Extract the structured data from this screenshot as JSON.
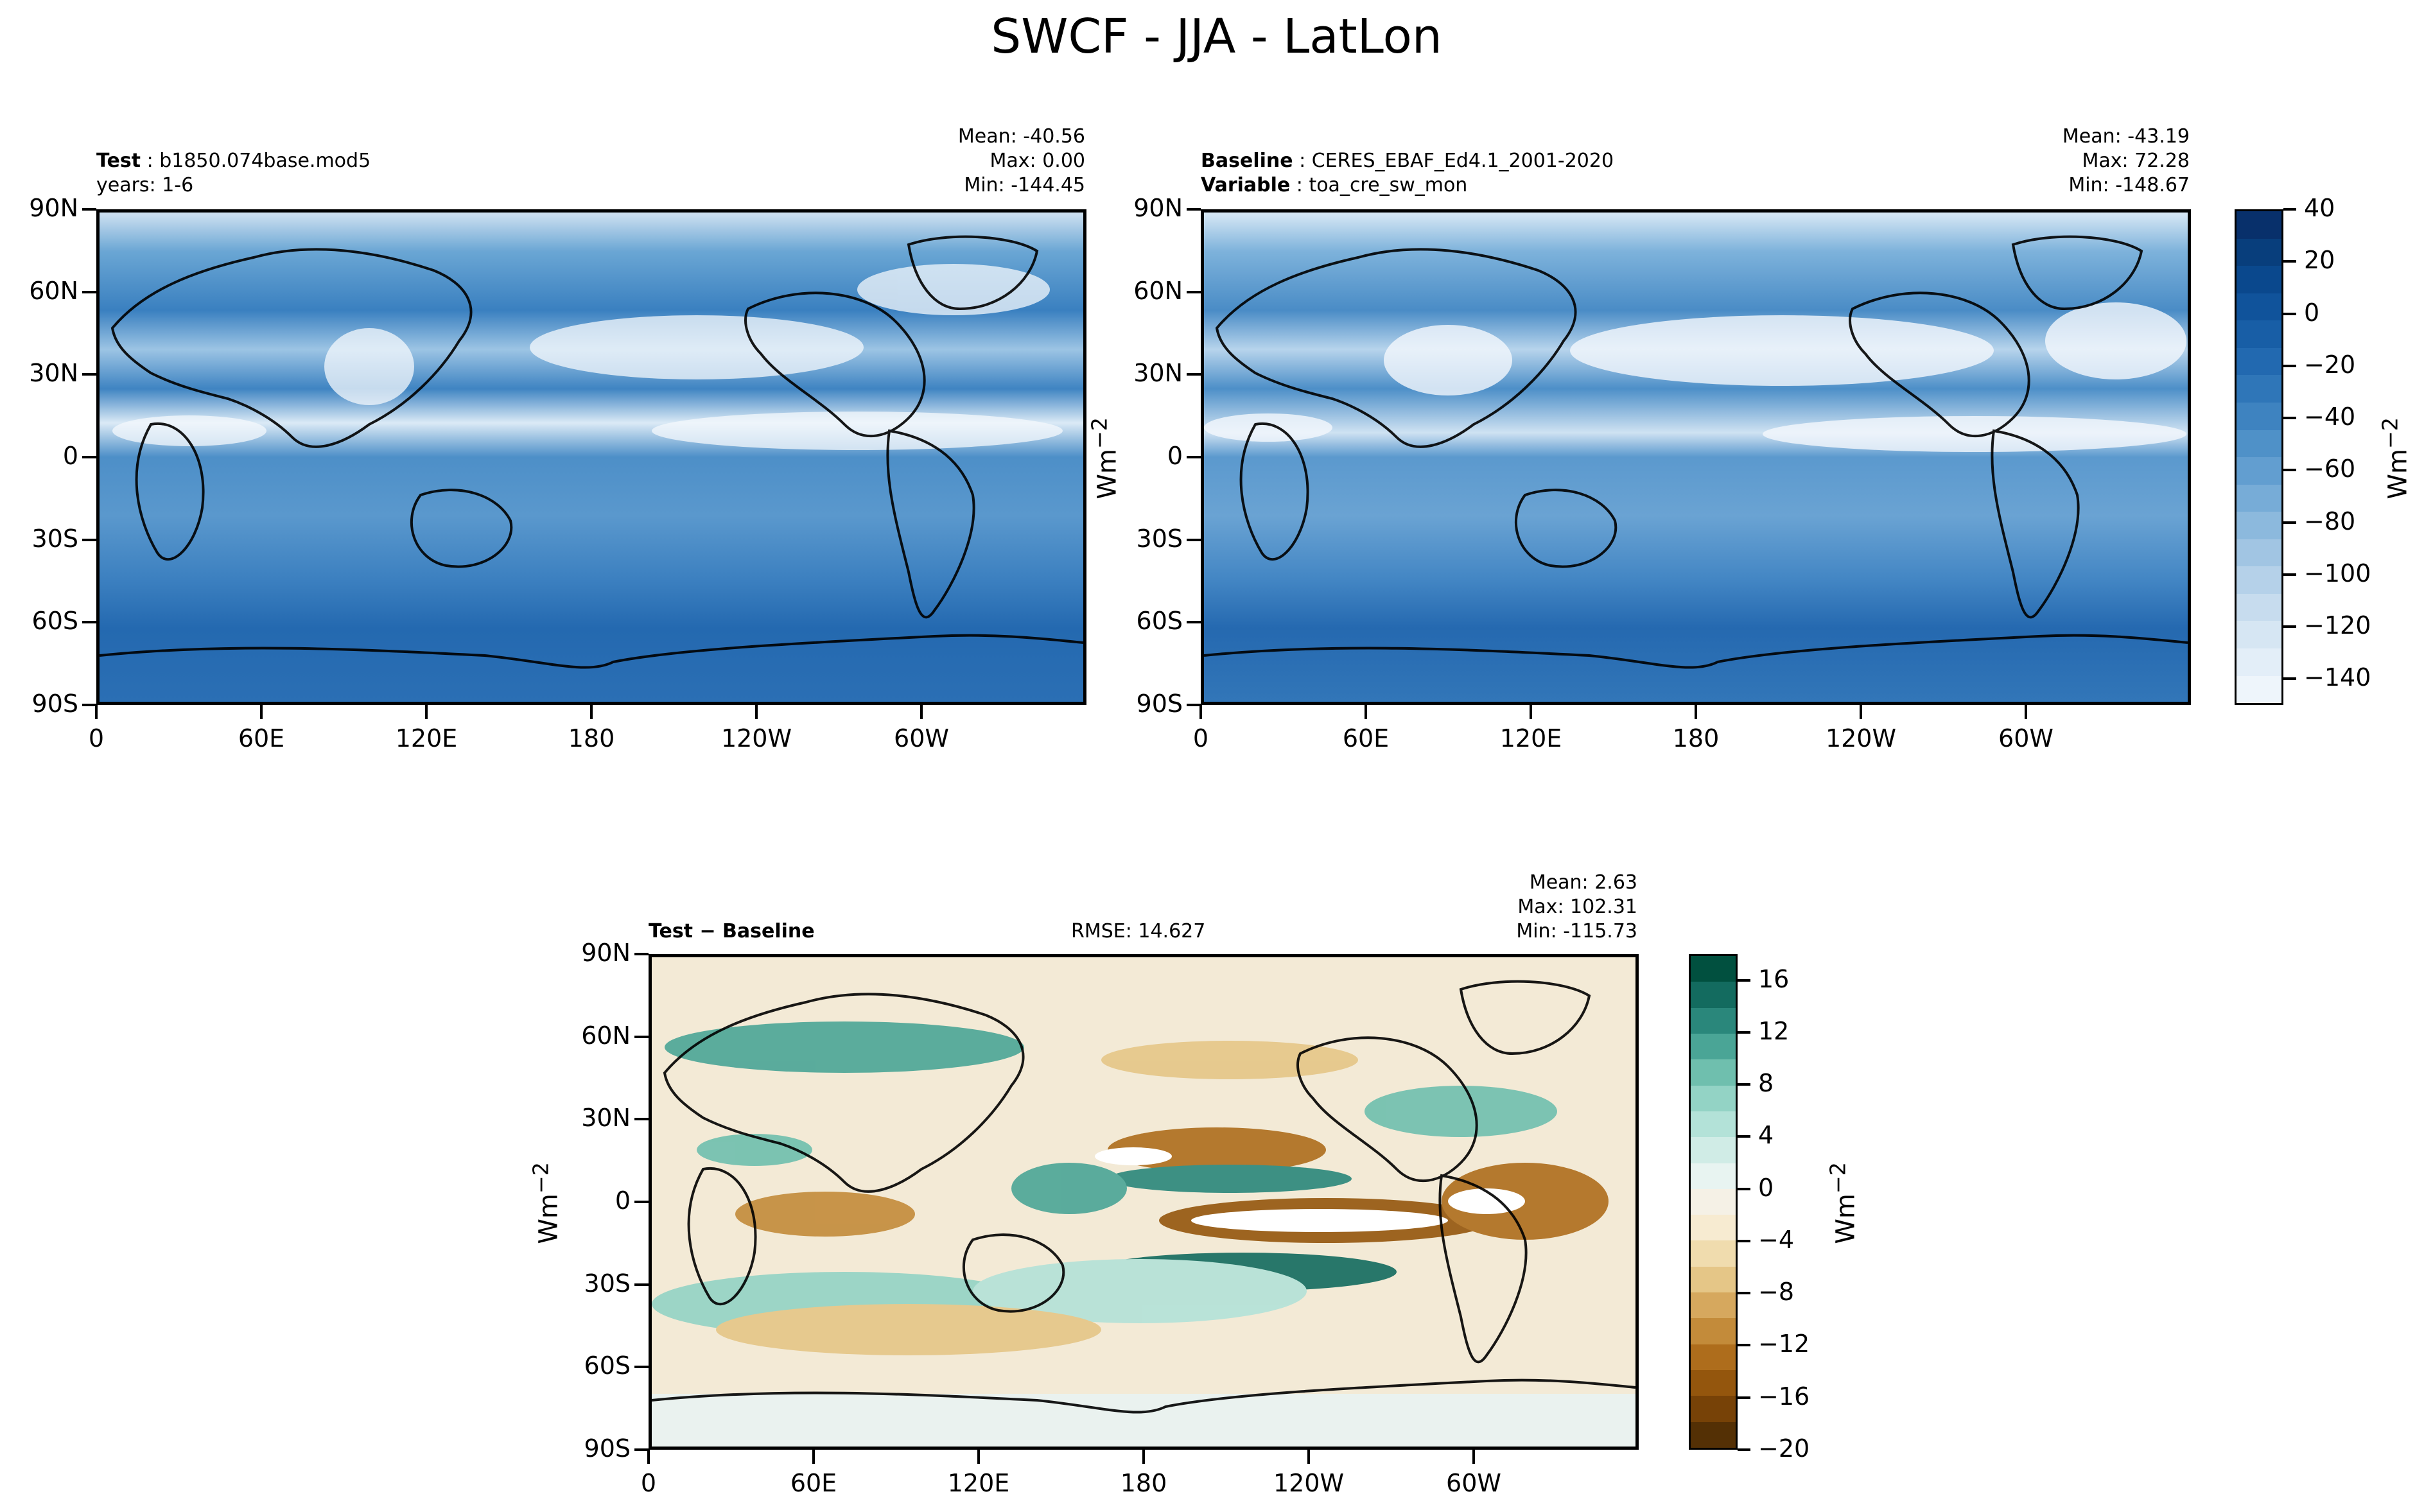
{
  "title": "SWCF - JJA - LatLon",
  "panels": {
    "test": {
      "label_bold": "Test",
      "label_value": "b1850.074base.mod5",
      "line2": "years: 1-6",
      "mean": "Mean: -40.56",
      "max": "Max:  0.00",
      "min": "Min: -144.45"
    },
    "baseline": {
      "label_bold": "Baseline",
      "label_value": "CERES_EBAF_Ed4.1_2001-2020",
      "line2_bold": "Variable",
      "line2_value": "toa_cre_sw_mon",
      "mean": "Mean: -43.19",
      "max": "Max: 72.28",
      "min": "Min: -148.67"
    },
    "diff": {
      "label_bold": "Test − Baseline",
      "rmse": "RMSE: 14.627",
      "mean": "Mean:  2.63",
      "max": "Max: 102.31",
      "min": "Min: -115.73"
    }
  },
  "axes": {
    "lat_ticks": [
      "90N",
      "60N",
      "30N",
      "0",
      "30S",
      "60S",
      "90S"
    ],
    "lon_ticks": [
      "0",
      "60E",
      "120E",
      "180",
      "120W",
      "60W"
    ]
  },
  "colorbars": {
    "main": {
      "label": "Wm",
      "label_sup": "−2",
      "ticks": [
        "40",
        "20",
        "0",
        "−20",
        "−40",
        "−60",
        "−80",
        "−100",
        "−120",
        "−140"
      ],
      "colors": [
        "#eef5fb",
        "#e3eef8",
        "#d6e6f3",
        "#c7dcee",
        "#b5d1e9",
        "#a1c5e3",
        "#8cb9dd",
        "#77acd7",
        "#629ed0",
        "#4f91c8",
        "#3e83c0",
        "#2f76b8",
        "#2269b0",
        "#185ea6",
        "#10539b",
        "#0a488d",
        "#083e7c",
        "#08306b"
      ]
    },
    "diff": {
      "label": "Wm",
      "label_sup": "−2",
      "ticks": [
        "16",
        "12",
        "8",
        "4",
        "0",
        "−4",
        "−8",
        "−12",
        "−16",
        "−20"
      ],
      "colors": [
        "#543005",
        "#774207",
        "#94560d",
        "#ae6d1c",
        "#c38b3a",
        "#d6a85e",
        "#e5c687",
        "#f0dcae",
        "#f7ebd1",
        "#f5f1e6",
        "#e8f4f1",
        "#d0ece6",
        "#b3e2d8",
        "#93d3c5",
        "#6fbfae",
        "#4aa596",
        "#2a877b",
        "#136b5f",
        "#01503f"
      ]
    }
  },
  "chart_data": [
    {
      "type": "heatmap",
      "title": "Test: b1850.074base.mod5",
      "projection": "PlateCarree, central longitude 180",
      "xlabel": "",
      "ylabel": "",
      "x_ticks": [
        "0",
        "60E",
        "120E",
        "180",
        "120W",
        "60W"
      ],
      "y_ticks": [
        "90N",
        "60N",
        "30N",
        "0",
        "30S",
        "60S",
        "90S"
      ],
      "colorbar_range": [
        -150,
        40
      ],
      "stats": {
        "mean": -40.56,
        "max": 0.0,
        "min": -144.45
      }
    },
    {
      "type": "heatmap",
      "title": "Baseline: CERES_EBAF_Ed4.1_2001-2020",
      "variable": "toa_cre_sw_mon",
      "x_ticks": [
        "0",
        "60E",
        "120E",
        "180",
        "120W",
        "60W"
      ],
      "y_ticks": [
        "90N",
        "60N",
        "30N",
        "0",
        "30S",
        "60S",
        "90S"
      ],
      "colorbar_range": [
        -150,
        40
      ],
      "stats": {
        "mean": -43.19,
        "max": 72.28,
        "min": -148.67
      }
    },
    {
      "type": "heatmap",
      "title": "Test − Baseline",
      "x_ticks": [
        "0",
        "60E",
        "120E",
        "180",
        "120W",
        "60W"
      ],
      "y_ticks": [
        "90N",
        "60N",
        "30N",
        "0",
        "30S",
        "60S",
        "90S"
      ],
      "colorbar_range": [
        -20,
        18
      ],
      "stats": {
        "mean": 2.63,
        "max": 102.31,
        "min": -115.73,
        "rmse": 14.627
      }
    }
  ]
}
